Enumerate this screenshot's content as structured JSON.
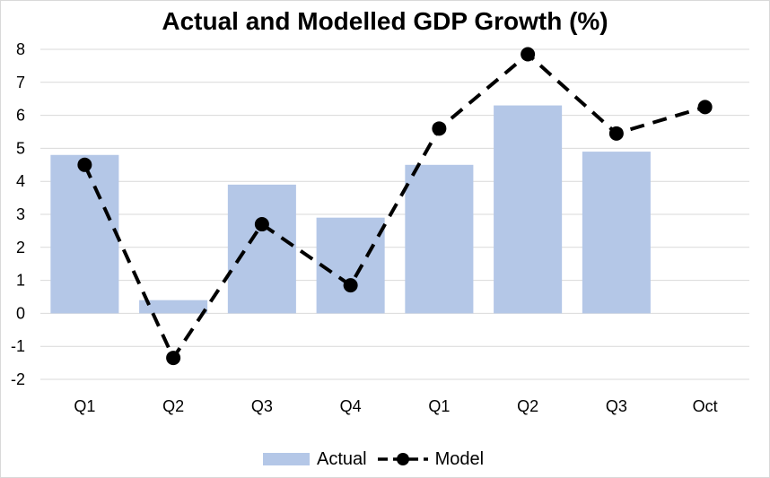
{
  "chart_data": {
    "type": "bar",
    "title": "Actual and Modelled GDP Growth (%)",
    "categories": [
      "Q1",
      "Q2",
      "Q3",
      "Q4",
      "Q1",
      "Q2",
      "Q3",
      "Oct"
    ],
    "ylim": [
      -2,
      8
    ],
    "yticks": [
      -2,
      -1,
      0,
      1,
      2,
      3,
      4,
      5,
      6,
      7,
      8
    ],
    "grid": true,
    "legend_position": "bottom",
    "series": [
      {
        "name": "Actual",
        "type": "bar",
        "color": "#b4c7e7",
        "values": [
          4.8,
          0.4,
          3.9,
          2.9,
          4.5,
          6.3,
          4.9,
          null
        ]
      },
      {
        "name": "Model",
        "type": "line",
        "style": "dashed",
        "marker": "circle",
        "color": "#000000",
        "values": [
          4.5,
          -1.35,
          2.7,
          0.85,
          5.6,
          7.85,
          5.45,
          6.25
        ]
      }
    ]
  }
}
